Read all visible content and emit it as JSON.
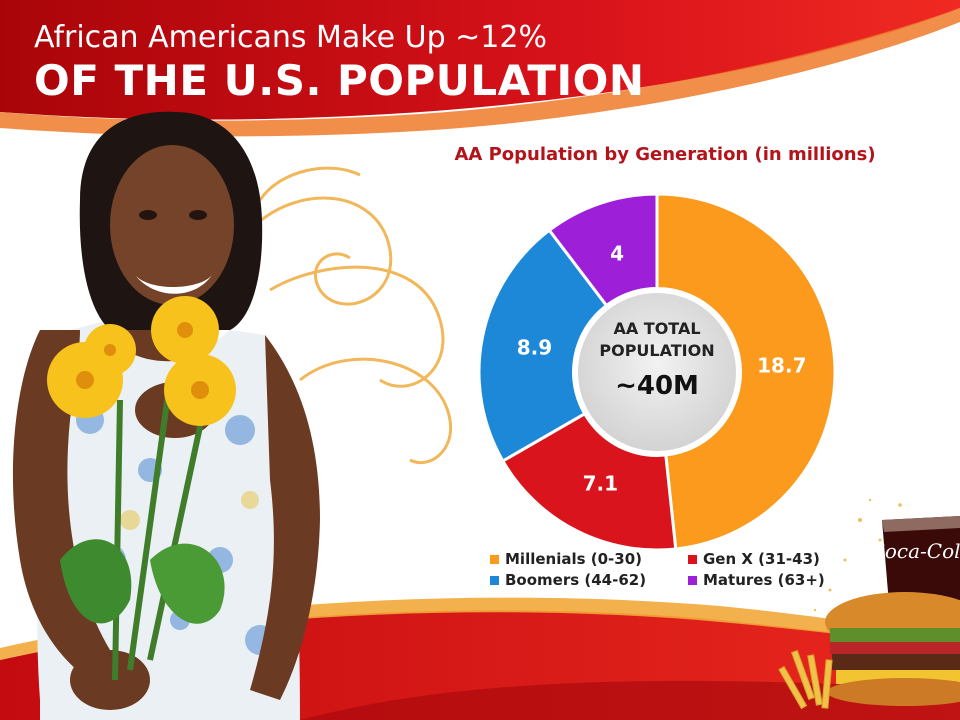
{
  "slide": {
    "title_line1": "African Americans Make Up ~12%",
    "title_line2": "OF THE U.S. POPULATION"
  },
  "colors": {
    "banner_red": "#d10d12",
    "banner_dark_red": "#a4070b",
    "title_text": "#ffffff",
    "chart_title": "#b3141b",
    "center_circle": "#dedede"
  },
  "chart_data": {
    "type": "pie",
    "title": "AA Population by Generation (in millions)",
    "categories": [
      "Millenials (0-30)",
      "Gen X (31-43)",
      "Boomers (44-62)",
      "Matures (63+)"
    ],
    "values": [
      18.7,
      7.1,
      8.9,
      4
    ],
    "data_labels": [
      "18.7",
      "7.1",
      "8.9",
      "4"
    ],
    "colors": [
      "#fb9a1c",
      "#d9141c",
      "#1e88d8",
      "#9d1fd8"
    ],
    "donut": true,
    "center_text_line1": "AA TOTAL",
    "center_text_line2": "POPULATION",
    "center_value": "~40M",
    "legend_position": "bottom"
  },
  "decorations": {
    "photo_subject": "girl-holding-yellow-flowers",
    "bottom_right_image": "cola-and-burger",
    "cola_logo": "Coca-Cola"
  }
}
